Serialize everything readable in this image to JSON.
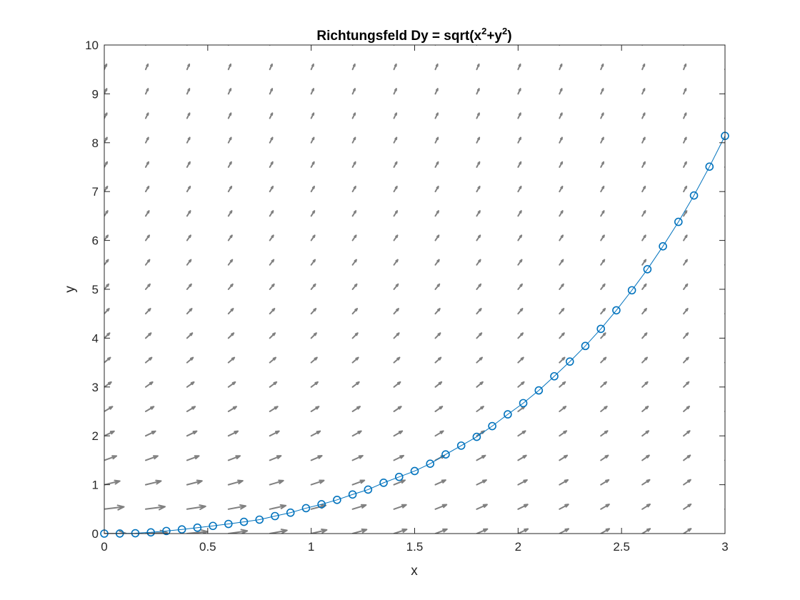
{
  "chart_data": {
    "type": "scatter",
    "title": "Richtungsfeld Dy = sqrt(x",
    "title_sup1": "2",
    "title_mid": "+y",
    "title_sup2": "2",
    "title_end": ")",
    "xlabel": "x",
    "ylabel": "y",
    "xlim": [
      0,
      3
    ],
    "ylim": [
      0,
      10
    ],
    "x_ticks": [
      0,
      0.5,
      1,
      1.5,
      2,
      2.5,
      3
    ],
    "x_tick_labels": [
      "0",
      "0.5",
      "1",
      "1.5",
      "2",
      "2.5",
      "3"
    ],
    "y_ticks": [
      0,
      1,
      2,
      3,
      4,
      5,
      6,
      7,
      8,
      9,
      10
    ],
    "y_tick_labels": [
      "0",
      "1",
      "2",
      "3",
      "4",
      "5",
      "6",
      "7",
      "8",
      "9",
      "10"
    ],
    "grid": false,
    "legend": "none",
    "direction_field": {
      "equation": "dy/dx = sqrt(x^2 + y^2)",
      "x_start": 0,
      "x_step": 0.2,
      "x_count": 16,
      "y_start": 0,
      "y_step": 0.5,
      "y_count": 21,
      "color": "#808080"
    },
    "series": [
      {
        "marker": "circle",
        "color": "#0072BD",
        "x": [
          0,
          0.075,
          0.15,
          0.225,
          0.3,
          0.375,
          0.45,
          0.525,
          0.6,
          0.675,
          0.75,
          0.825,
          0.9,
          0.975,
          1.05,
          1.125,
          1.2,
          1.275,
          1.35,
          1.425,
          1.5,
          1.575,
          1.65,
          1.725,
          1.8,
          1.875,
          1.95,
          2.025,
          2.1,
          2.175,
          2.25,
          2.325,
          2.4,
          2.475,
          2.55,
          2.625,
          2.7,
          2.775,
          2.85,
          2.925,
          3.0
        ],
        "y": [
          0,
          0.001,
          0.007,
          0.025,
          0.053,
          0.085,
          0.121,
          0.157,
          0.197,
          0.24,
          0.285,
          0.358,
          0.428,
          0.52,
          0.6,
          0.69,
          0.8,
          0.9,
          1.04,
          1.16,
          1.28,
          1.43,
          1.62,
          1.8,
          1.98,
          2.2,
          2.44,
          2.67,
          2.93,
          3.22,
          3.52,
          3.84,
          4.19,
          4.57,
          4.98,
          5.41,
          5.88,
          6.38,
          6.92,
          7.51,
          8.14
        ]
      }
    ]
  }
}
